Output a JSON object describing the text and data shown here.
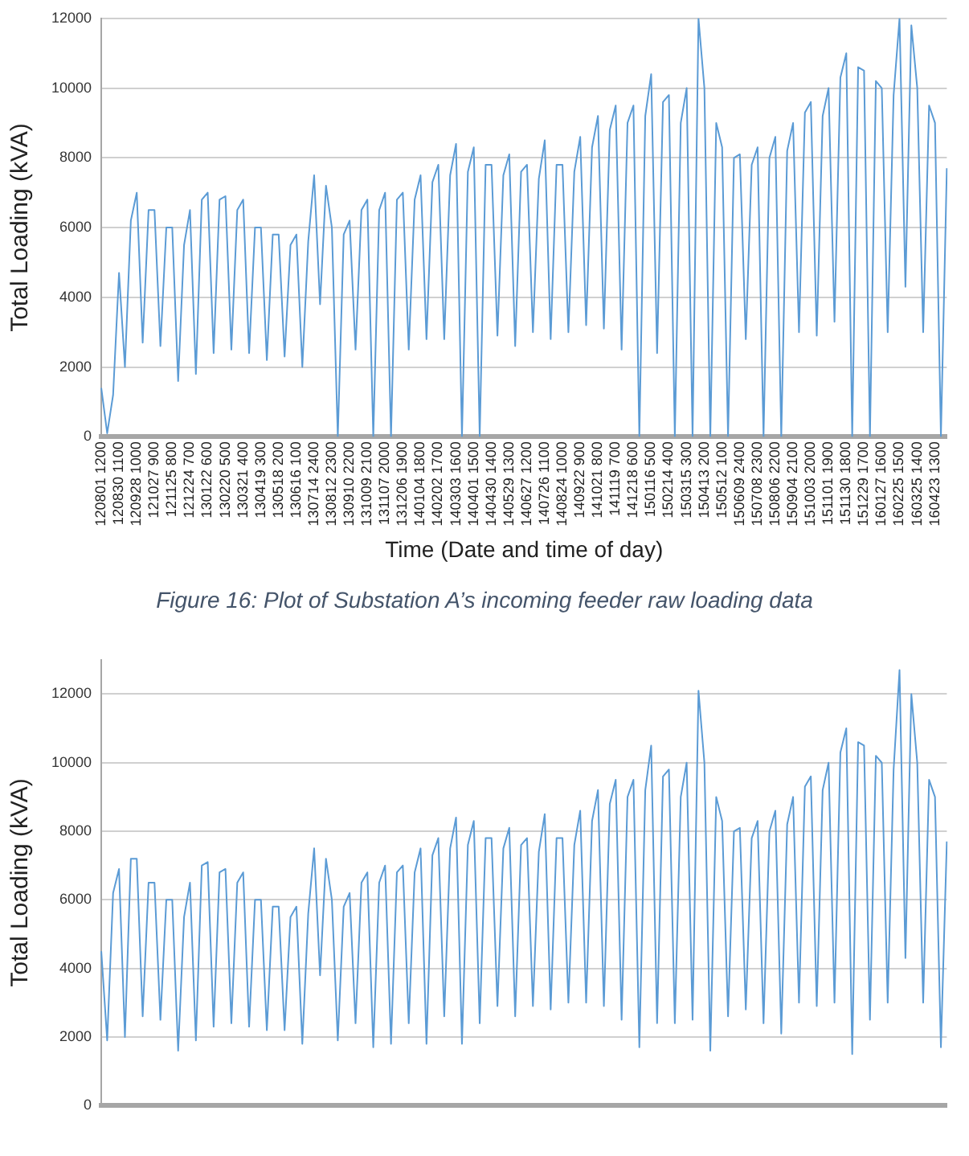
{
  "chart_data": [
    {
      "type": "line",
      "ylabel": "Total Loading (kVA)",
      "xlabel": "Time (Date and time of day)",
      "annotations": [
        "Figure 16: Plot of Substation A’s incoming feeder raw loading data"
      ],
      "categories": [
        "120801 1200",
        null,
        null,
        "120830 1100",
        null,
        null,
        "120928 1000",
        null,
        null,
        "121027 900",
        null,
        null,
        "121125 800",
        null,
        null,
        "121224 700",
        null,
        null,
        "130122 600",
        null,
        null,
        "130220 500",
        null,
        null,
        "130321 400",
        null,
        null,
        "130419 300",
        null,
        null,
        "130518 200",
        null,
        null,
        "130616 100",
        null,
        null,
        "130714 2400",
        null,
        null,
        "130812 2300",
        null,
        null,
        "130910 2200",
        null,
        null,
        "131009 2100",
        null,
        null,
        "131107 2000",
        null,
        null,
        "131206 1900",
        null,
        null,
        "140104 1800",
        null,
        null,
        "140202 1700",
        null,
        null,
        "140303 1600",
        null,
        null,
        "140401 1500",
        null,
        null,
        "140430 1400",
        null,
        null,
        "140529 1300",
        null,
        null,
        "140627 1200",
        null,
        null,
        "140726 1100",
        null,
        null,
        "140824 1000",
        null,
        null,
        "140922 900",
        null,
        null,
        "141021 800",
        null,
        null,
        "141119 700",
        null,
        null,
        "141218 600",
        null,
        null,
        "150116 500",
        null,
        null,
        "150214 400",
        null,
        null,
        "150315 300",
        null,
        null,
        "150413 200",
        null,
        null,
        "150512 100",
        null,
        null,
        "150609 2400",
        null,
        null,
        "150708 2300",
        null,
        null,
        "150806 2200",
        null,
        null,
        "150904 2100",
        null,
        null,
        "151003 2000",
        null,
        null,
        "151101 1900",
        null,
        null,
        "151130 1800",
        null,
        null,
        "151229 1700",
        null,
        null,
        "160127 1600",
        null,
        null,
        "160225 1500",
        null,
        null,
        "160325 1400",
        null,
        null,
        "160423 1300",
        null,
        null
      ],
      "color": "#5b9bd5",
      "values": [
        1400,
        100,
        1200,
        4700,
        2000,
        6200,
        7000,
        2700,
        6500,
        6500,
        2600,
        6000,
        6000,
        1600,
        5500,
        6500,
        1800,
        6800,
        7000,
        2400,
        6800,
        6900,
        2500,
        6500,
        6800,
        2400,
        6000,
        6000,
        2200,
        5800,
        5800,
        2300,
        5500,
        5800,
        2000,
        5600,
        7500,
        3800,
        7200,
        6000,
        0,
        5800,
        6200,
        2500,
        6500,
        6800,
        0,
        6500,
        7000,
        0,
        6800,
        7000,
        2500,
        6800,
        7500,
        2800,
        7300,
        7800,
        2800,
        7500,
        8400,
        0,
        7600,
        8300,
        0,
        7800,
        7800,
        2900,
        7500,
        8100,
        2600,
        7600,
        7800,
        3000,
        7400,
        8500,
        2800,
        7800,
        7800,
        3000,
        7600,
        8600,
        3200,
        8300,
        9200,
        3100,
        8800,
        9500,
        2500,
        9000,
        9500,
        0,
        9200,
        10400,
        2400,
        9600,
        9800,
        0,
        9000,
        10000,
        0,
        12000,
        10000,
        0,
        9000,
        8300,
        0,
        8000,
        8100,
        2800,
        7800,
        8300,
        0,
        8000,
        8600,
        0,
        8200,
        9000,
        3000,
        9300,
        9600,
        2900,
        9200,
        10000,
        3300,
        10300,
        11000,
        0,
        10600,
        10500,
        0,
        10200,
        10000,
        3000,
        9800,
        12000,
        4300,
        11800,
        10000,
        3000,
        9500,
        9000,
        0,
        7700
      ],
      "ylim": [
        0,
        12000
      ],
      "yticks": [
        0,
        2000,
        4000,
        6000,
        8000,
        10000,
        12000
      ],
      "grid": "y"
    },
    {
      "type": "line",
      "ylabel": "Total Loading (kVA)",
      "categories": [
        null,
        null,
        null,
        null,
        null,
        null,
        null,
        null,
        null,
        null,
        null,
        null,
        null,
        null,
        null,
        null,
        null,
        null,
        null,
        null,
        null,
        null,
        null,
        null,
        null,
        null,
        null,
        null,
        null,
        null,
        null,
        null,
        null,
        null,
        null,
        null,
        null,
        null,
        null,
        null,
        null,
        null,
        null,
        null,
        null,
        null,
        null,
        null,
        null,
        null,
        null,
        null,
        null,
        null,
        null,
        null,
        null,
        null,
        null,
        null,
        null,
        null,
        null,
        null,
        null,
        null,
        null,
        null,
        null,
        null,
        null,
        null,
        null,
        null,
        null,
        null,
        null,
        null,
        null,
        null,
        null,
        null,
        null,
        null,
        null,
        null,
        null,
        null,
        null,
        null,
        null,
        null,
        null,
        null,
        null,
        null,
        null,
        null,
        null,
        null,
        null,
        null,
        null,
        null,
        null,
        null,
        null,
        null,
        null,
        null,
        null,
        null,
        null,
        null,
        null,
        null,
        null,
        null,
        null,
        null,
        null,
        null,
        null,
        null,
        null,
        null,
        null,
        null,
        null,
        null,
        null,
        null,
        null,
        null,
        null,
        null,
        null,
        null,
        null,
        null,
        null,
        null,
        null,
        null
      ],
      "color": "#5b9bd5",
      "values": [
        4500,
        1900,
        6200,
        6900,
        2000,
        7200,
        7200,
        2600,
        6500,
        6500,
        2500,
        6000,
        6000,
        1600,
        5500,
        6500,
        1900,
        7000,
        7100,
        2300,
        6800,
        6900,
        2400,
        6500,
        6800,
        2300,
        6000,
        6000,
        2200,
        5800,
        5800,
        2200,
        5500,
        5800,
        1800,
        5600,
        7500,
        3800,
        7200,
        6000,
        1900,
        5800,
        6200,
        2400,
        6500,
        6800,
        1700,
        6500,
        7000,
        1800,
        6800,
        7000,
        2400,
        6800,
        7500,
        1800,
        7300,
        7800,
        2600,
        7500,
        8400,
        1800,
        7600,
        8300,
        2400,
        7800,
        7800,
        2900,
        7500,
        8100,
        2600,
        7600,
        7800,
        2900,
        7400,
        8500,
        2800,
        7800,
        7800,
        3000,
        7600,
        8600,
        3000,
        8300,
        9200,
        2900,
        8800,
        9500,
        2500,
        9000,
        9500,
        1700,
        9200,
        10500,
        2400,
        9600,
        9800,
        2400,
        9000,
        10000,
        2500,
        12100,
        10000,
        1600,
        9000,
        8300,
        2600,
        8000,
        8100,
        2800,
        7800,
        8300,
        2400,
        8000,
        8600,
        2100,
        8200,
        9000,
        3000,
        9300,
        9600,
        2900,
        9200,
        10000,
        3000,
        10300,
        11000,
        1500,
        10600,
        10500,
        2500,
        10200,
        10000,
        3000,
        9800,
        12700,
        4300,
        12000,
        10000,
        3000,
        9500,
        9000,
        1700,
        7700
      ],
      "ylim": [
        0,
        13000
      ],
      "yticks": [
        0,
        2000,
        4000,
        6000,
        8000,
        10000,
        12000
      ],
      "grid": "y"
    }
  ]
}
